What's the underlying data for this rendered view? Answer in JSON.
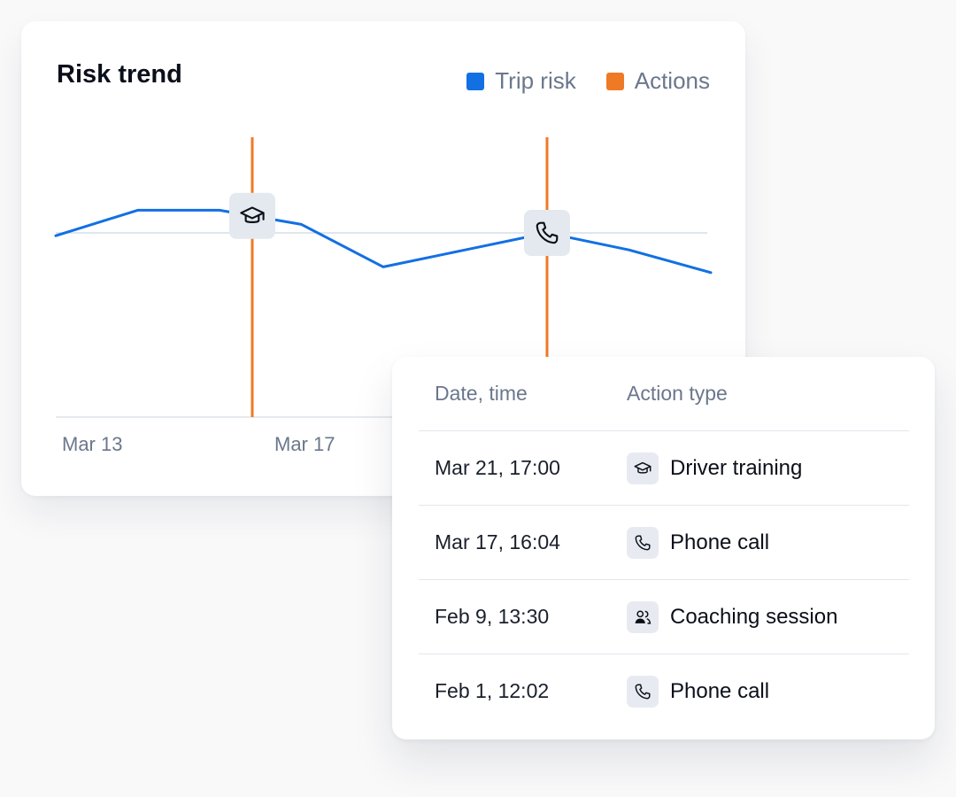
{
  "chart_data": {
    "type": "line",
    "title": "Risk trend",
    "legend": [
      {
        "label": "Trip risk",
        "color": "#1270e3"
      },
      {
        "label": "Actions",
        "color": "#ef7a25"
      }
    ],
    "legend_position": "top-right",
    "x_ticks": [
      "Mar 13",
      "Mar 17"
    ],
    "series": [
      {
        "name": "Trip risk",
        "color": "#1270e3",
        "values": [
          64,
          73,
          73,
          68,
          53,
          59,
          65,
          59,
          51
        ]
      }
    ],
    "y_range": [
      0,
      100
    ],
    "baseline": 65,
    "action_markers": [
      {
        "at_point": 2.4,
        "icon": "graduation-cap-icon"
      },
      {
        "at_point": 6.0,
        "icon": "phone-icon"
      }
    ],
    "colors": {
      "line": "#1270e3",
      "action": "#ef7a25",
      "baseline": "#c9d6e4",
      "axis": "#d8dde4"
    }
  },
  "actions_table": {
    "headers": {
      "date": "Date, time",
      "type": "Action type"
    },
    "rows": [
      {
        "date": "Mar 21, 17:00",
        "type": "Driver training",
        "icon": "graduation-cap-icon"
      },
      {
        "date": "Mar 17, 16:04",
        "type": "Phone call",
        "icon": "phone-icon"
      },
      {
        "date": "Feb 9, 13:30",
        "type": "Coaching session",
        "icon": "users-icon"
      },
      {
        "date": "Feb 1, 12:02",
        "type": "Phone call",
        "icon": "phone-icon"
      }
    ]
  }
}
